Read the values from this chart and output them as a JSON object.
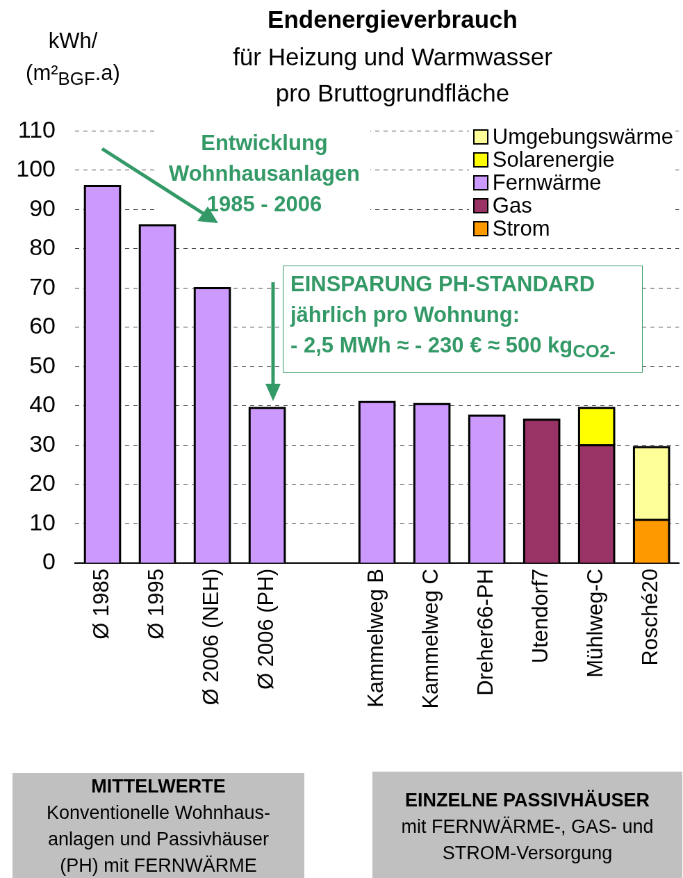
{
  "chart_data": {
    "type": "bar",
    "title": "Endenergieverbrauch",
    "subtitle": "für Heizung und Warmwasser\npro Bruttogrundfläche",
    "ylabel": "kWh/\n(m²$_{BGF}$.a)",
    "categories": [
      "Ø 1985",
      "Ø 1995",
      "Ø 2006 (NEH)",
      "Ø 2006 (PH)",
      null,
      "Kammelweg B",
      "Kammelweg C",
      "Dreher66-PH",
      "Utendorf7",
      "Mühlweg-C",
      "Rosché20"
    ],
    "series": [
      {
        "name": "Strom",
        "color": "#ff9900",
        "values": [
          null,
          null,
          null,
          null,
          null,
          null,
          null,
          null,
          null,
          null,
          11
        ]
      },
      {
        "name": "Gas",
        "color": "#993366",
        "values": [
          null,
          null,
          null,
          null,
          null,
          null,
          null,
          null,
          36.5,
          30,
          null
        ]
      },
      {
        "name": "Fernwärme",
        "color": "#cc99ff",
        "values": [
          96,
          86,
          70,
          39.5,
          null,
          41,
          40.5,
          37.5,
          null,
          null,
          null
        ]
      },
      {
        "name": "Solarenergie",
        "color": "#ffff00",
        "values": [
          null,
          null,
          null,
          null,
          null,
          null,
          null,
          null,
          null,
          9.5,
          null
        ]
      },
      {
        "name": "Umgebungswärme",
        "color": "#ffff99",
        "values": [
          null,
          null,
          null,
          null,
          null,
          null,
          null,
          null,
          null,
          null,
          18.5
        ]
      }
    ],
    "stacked": true,
    "ylim": [
      0,
      110
    ],
    "yticks": [
      0,
      10,
      20,
      30,
      40,
      50,
      60,
      70,
      80,
      90,
      100,
      110
    ],
    "grid": "y",
    "legend": "top right",
    "annotations": [
      "Entwicklung\nWohnhausanlagen\n1985 - 2006",
      "EINSPARUNG PH-STANDARD\njährlich pro Wohnung:\n- 2,5 MWh ≈ - 230 € ≈ 500 kg$_{CO2-}$",
      "MITTELWERTE",
      "Konventionelle Wohnhaus-\nanlagen und Passivhäuser\n(PH) mit FERNWÄRME",
      "EINZELNE PASSIVHÄUSER",
      "mit FERNWÄRME-, GAS- und\nSTROM-Versorgung"
    ]
  }
}
